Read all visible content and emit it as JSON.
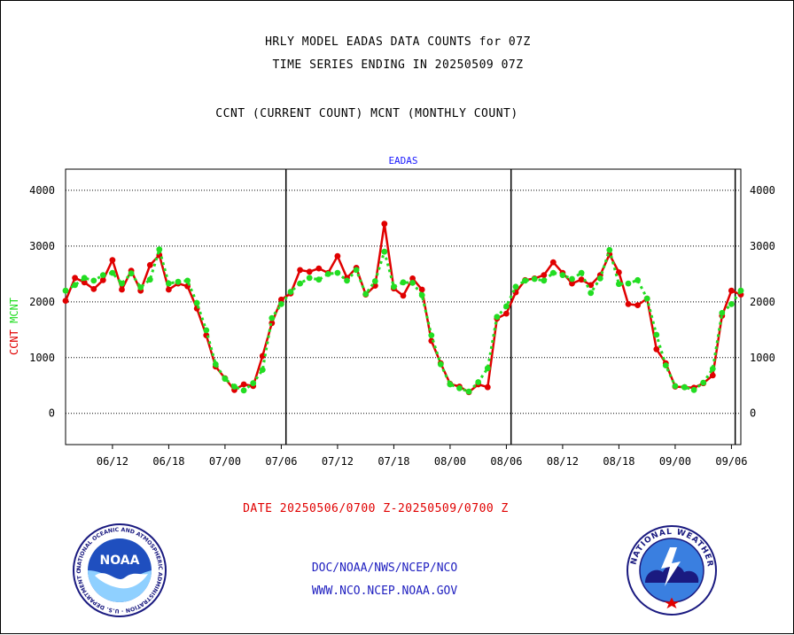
{
  "header": {
    "title_line1": "HRLY MODEL EADAS DATA COUNTS for 07Z",
    "title_line2": "TIME SERIES ENDING IN 20250509 07Z",
    "subtitle": "CCNT (CURRENT COUNT) MCNT (MONTHLY COUNT)"
  },
  "footer": {
    "date_range": "DATE 20250506/0700 Z-20250509/0700 Z",
    "link1": "DOC/NOAA/NWS/NCEP/NCO",
    "link2": "WWW.NCO.NCEP.NOAA.GOV"
  },
  "logos": {
    "noaa_label": "NOAA",
    "noaa_ring_text": "NATIONAL OCEANIC AND ATMOSPHERIC ADMINISTRATION · U.S. DEPARTMENT OF COMMERCE ·",
    "nws_ring_text": "NATIONAL WEATHER SERVICE"
  },
  "colors": {
    "ccnt": "#e00000",
    "mcnt": "#22dd22",
    "label_blue": "#1a1aff"
  },
  "chart_data": {
    "type": "line",
    "title": "EADAS",
    "ylabel_parts": [
      {
        "text": "CCNT",
        "color": "#e00000"
      },
      {
        "text": "MCNT",
        "color": "#22dd22"
      }
    ],
    "ylim": [
      -560,
      4380
    ],
    "yticks": [
      0,
      1000,
      2000,
      3000,
      4000
    ],
    "xlim": [
      0,
      72
    ],
    "xticks": [
      {
        "x": 5,
        "label": "06/12"
      },
      {
        "x": 11,
        "label": "06/18"
      },
      {
        "x": 17,
        "label": "07/00"
      },
      {
        "x": 23,
        "label": "07/06"
      },
      {
        "x": 29,
        "label": "07/12"
      },
      {
        "x": 35,
        "label": "07/18"
      },
      {
        "x": 41,
        "label": "08/00"
      },
      {
        "x": 47,
        "label": "08/06"
      },
      {
        "x": 53,
        "label": "08/12"
      },
      {
        "x": 59,
        "label": "08/18"
      },
      {
        "x": 65,
        "label": "09/00"
      },
      {
        "x": 71,
        "label": "09/06"
      }
    ],
    "day_boundaries": [
      23.5,
      47.5,
      71.4
    ],
    "grid": true,
    "series": [
      {
        "name": "CCNT",
        "color": "#e00000",
        "values": [
          2020,
          2430,
          2350,
          2230,
          2390,
          2750,
          2220,
          2560,
          2200,
          2660,
          2840,
          2220,
          2330,
          2280,
          1880,
          1400,
          840,
          630,
          420,
          520,
          490,
          1030,
          1620,
          2040,
          2150,
          2570,
          2540,
          2600,
          2520,
          2820,
          2430,
          2610,
          2130,
          2290,
          3400,
          2240,
          2110,
          2420,
          2220,
          1300,
          900,
          530,
          480,
          380,
          520,
          470,
          1700,
          1790,
          2170,
          2390,
          2420,
          2480,
          2710,
          2520,
          2330,
          2400,
          2300,
          2480,
          2850,
          2530,
          1960,
          1940,
          2060,
          1150,
          900,
          480,
          470,
          460,
          540,
          680,
          1750,
          2200,
          2130
        ]
      },
      {
        "name": "MCNT",
        "color": "#22dd22",
        "values": [
          2200,
          2300,
          2430,
          2380,
          2480,
          2520,
          2330,
          2510,
          2260,
          2400,
          2940,
          2330,
          2360,
          2380,
          1980,
          1490,
          880,
          620,
          480,
          410,
          540,
          780,
          1710,
          1960,
          2180,
          2330,
          2430,
          2400,
          2500,
          2520,
          2380,
          2570,
          2140,
          2370,
          2900,
          2270,
          2350,
          2340,
          2120,
          1400,
          880,
          520,
          450,
          390,
          560,
          810,
          1730,
          1920,
          2270,
          2380,
          2410,
          2380,
          2520,
          2480,
          2410,
          2520,
          2160,
          2420,
          2930,
          2320,
          2330,
          2390,
          2060,
          1410,
          860,
          490,
          470,
          420,
          550,
          800,
          1800,
          1960,
          2200
        ]
      }
    ]
  }
}
